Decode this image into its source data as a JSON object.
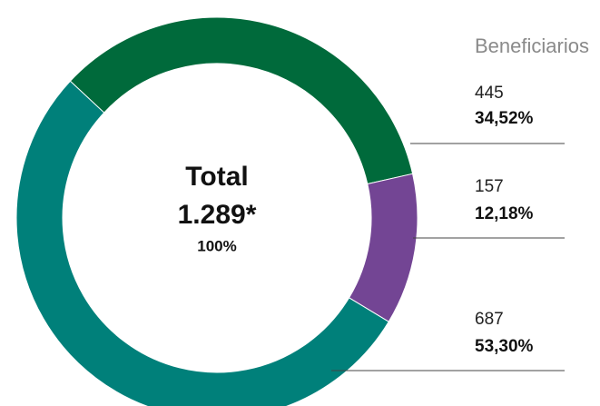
{
  "chart_data": {
    "type": "donut",
    "legend_title": "Beneficiarios",
    "center_title": "Total",
    "center_value": "1.289*",
    "center_percent": "100%",
    "counts": [
      445,
      157,
      687
    ],
    "values": [
      34.52,
      12.18,
      53.3
    ],
    "value_labels": [
      "34,52%",
      "12,18%",
      "53,30%"
    ],
    "colors": [
      "#006a3b",
      "#734594",
      "#00807a"
    ]
  }
}
